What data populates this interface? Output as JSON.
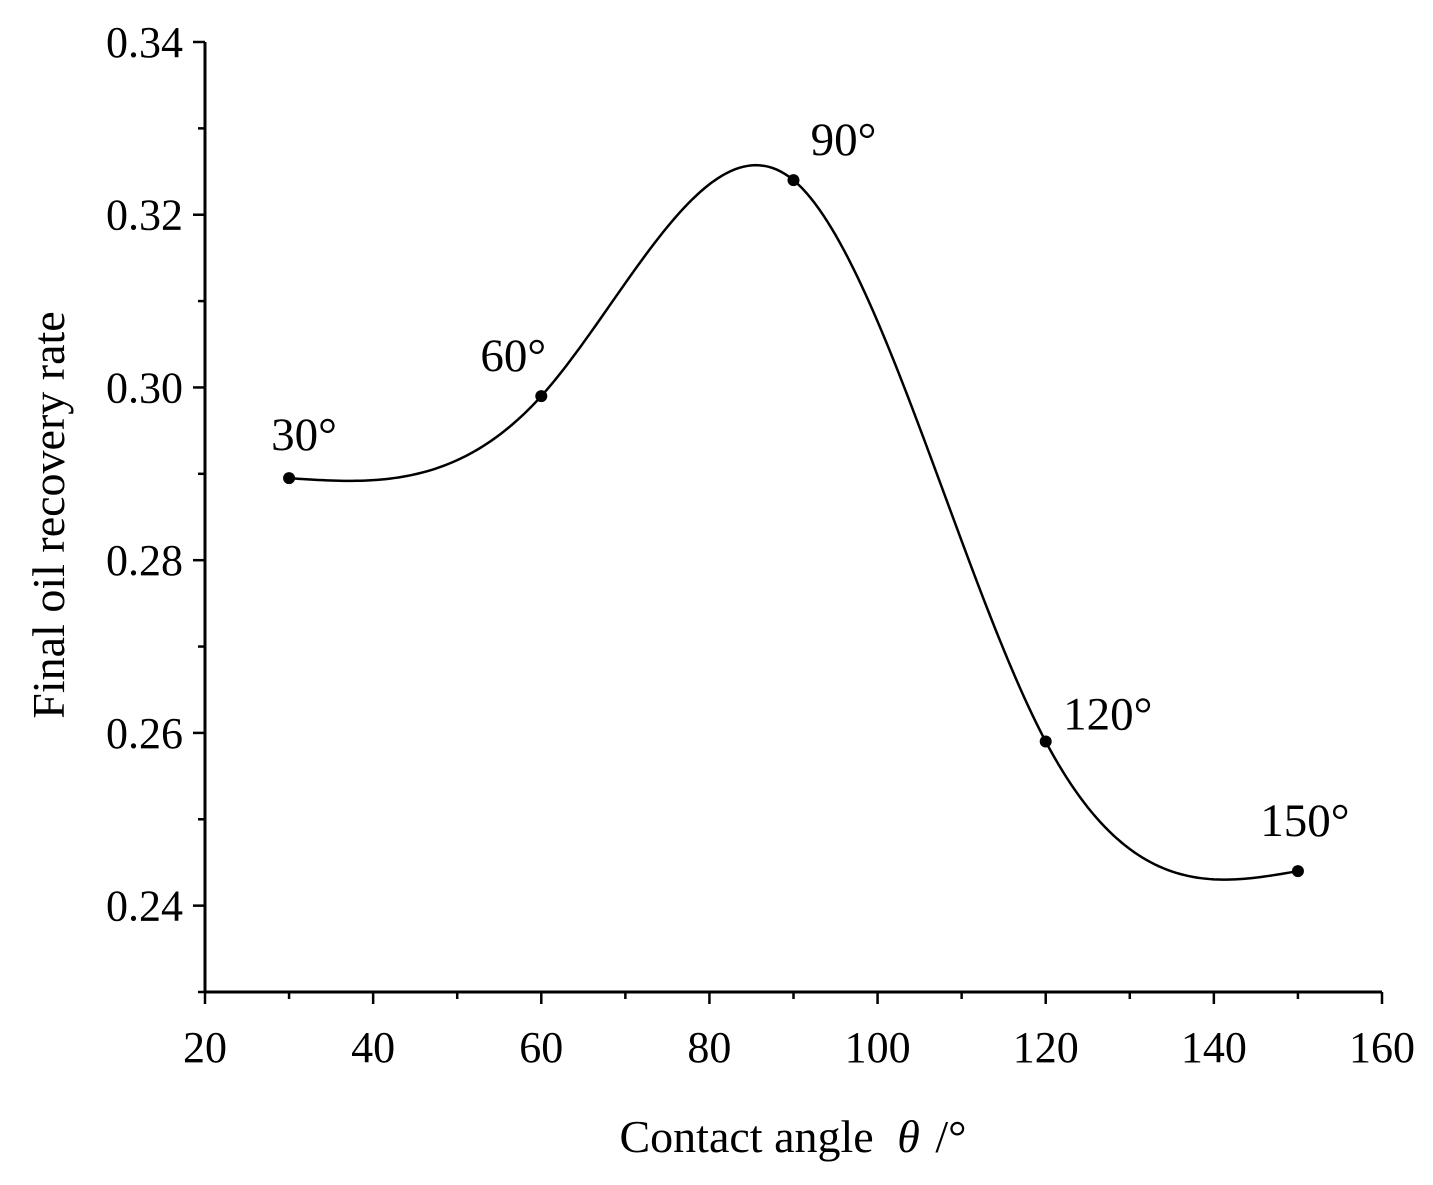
{
  "chart_data": {
    "type": "line",
    "title": "",
    "xlabel": "Contact angle",
    "xlabel_symbol": "θ",
    "xlabel_unit": "/°",
    "ylabel": "Final oil recovery rate",
    "xlim": [
      20,
      160
    ],
    "ylim": [
      0.23,
      0.34
    ],
    "x_ticks": [
      "20",
      "40",
      "60",
      "80",
      "100",
      "120",
      "140",
      "160"
    ],
    "y_ticks": [
      "0.24",
      "0.26",
      "0.28",
      "0.30",
      "0.32",
      "0.34"
    ],
    "grid": false,
    "legend": "none",
    "line_style": "smooth",
    "series": [
      {
        "x": [
          30,
          60,
          90,
          120,
          150
        ],
        "y": [
          0.2895,
          0.299,
          0.324,
          0.259,
          0.244
        ],
        "point_labels": [
          "30°",
          "60°",
          "90°",
          "120°",
          "150°"
        ]
      }
    ],
    "colors": {
      "line": "#000000",
      "marker": "#000000",
      "axis": "#000000"
    }
  }
}
